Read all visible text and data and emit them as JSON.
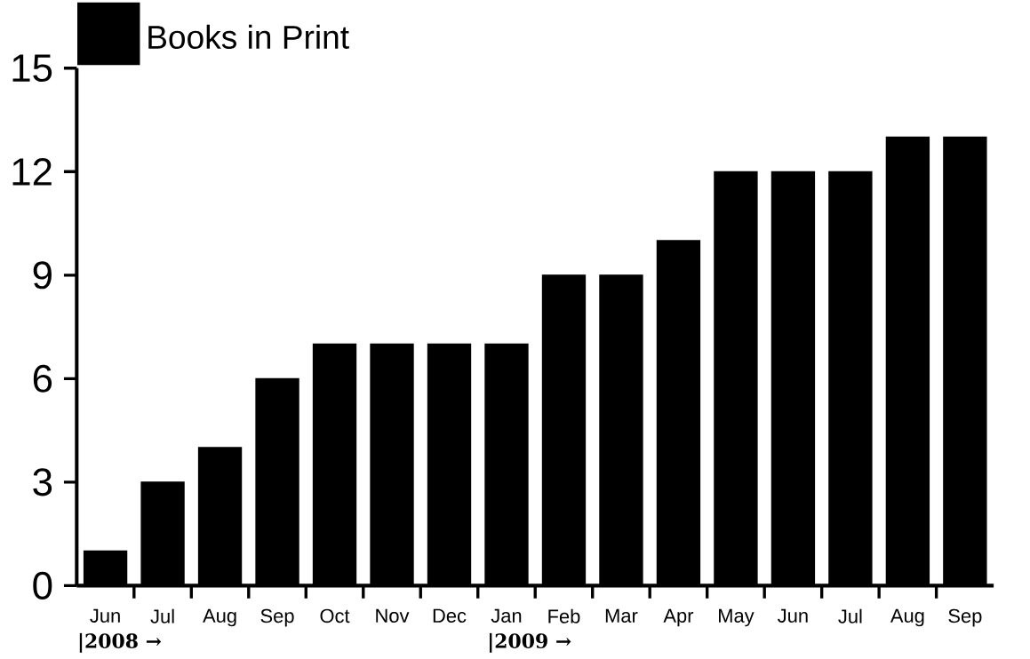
{
  "chart_data": {
    "type": "bar",
    "categories": [
      "Jun",
      "Jul",
      "Aug",
      "Sep",
      "Oct",
      "Nov",
      "Dec",
      "Jan",
      "Feb",
      "Mar",
      "Apr",
      "May",
      "Jun",
      "Jul",
      "Aug",
      "Sep"
    ],
    "series": [
      {
        "name": "Books in Print",
        "color": "#000000",
        "values": [
          1,
          3,
          4,
          6,
          7,
          7,
          7,
          7,
          9,
          9,
          10,
          12,
          12,
          12,
          13,
          13
        ]
      }
    ],
    "ylim": [
      0,
      15
    ],
    "yticks": [
      0,
      3,
      6,
      9,
      12,
      15
    ],
    "grid": false,
    "legend": "top left",
    "annotations": [
      "|2008 →",
      "|2009 →"
    ]
  }
}
